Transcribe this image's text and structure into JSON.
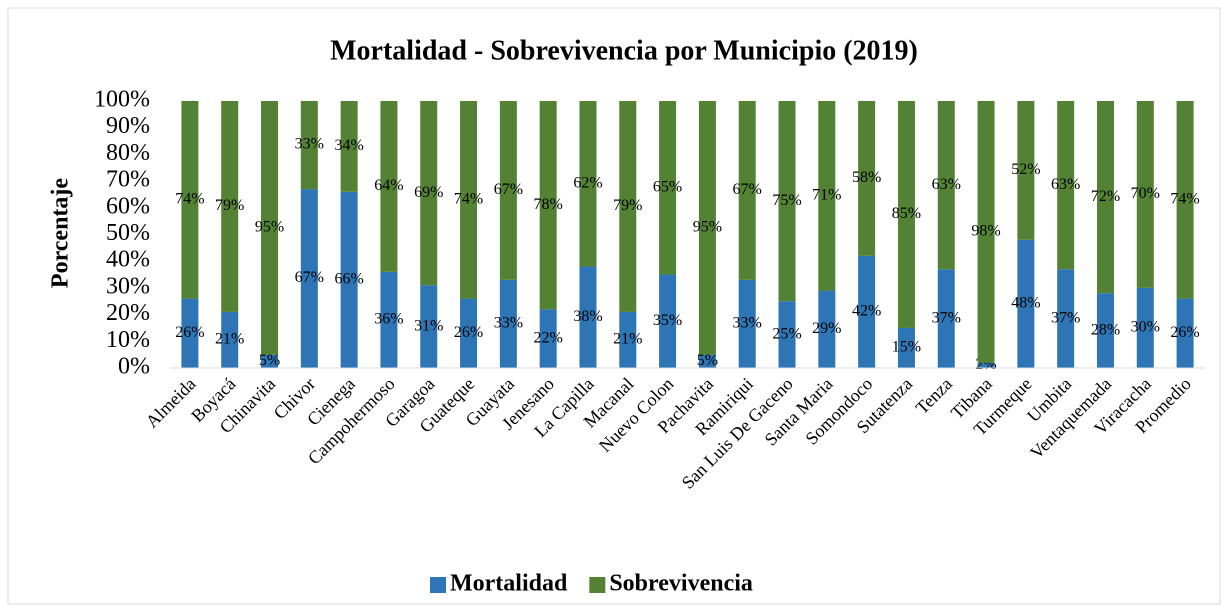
{
  "chart_data": {
    "type": "stacked_bar",
    "title": "Mortalidad - Sobrevivencia por Municipio (2019)",
    "y_label": "Porcentaje",
    "categories": [
      "Almeida",
      "Boyacá",
      "Chinavita",
      "Chivor",
      "Cienega",
      "Campohermoso",
      "Garagoa",
      "Guateque",
      "Guayata",
      "Jenesano",
      "La Capilla",
      "Macanal",
      "Nuevo Colon",
      "Pachavita",
      "Ramiriqui",
      "San Luis De Gaceno",
      "Santa Maria",
      "Somondoco",
      "Sutatenza",
      "Tenza",
      "Tibana",
      "Turmeque",
      "Umbita",
      "Ventaquemada",
      "Viracacha",
      "Promedio"
    ],
    "series": [
      {
        "name": "Mortalidad",
        "color": "#2e75b6",
        "values": [
          26,
          21,
          5,
          67,
          66,
          36,
          31,
          26,
          33,
          22,
          38,
          21,
          35,
          5,
          33,
          25,
          29,
          42,
          15,
          37,
          2,
          48,
          37,
          28,
          30,
          26
        ],
        "value_labels": [
          "26%",
          "21%",
          "5%",
          "67%",
          "66%",
          "36%",
          "31%",
          "26%",
          "33%",
          "22%",
          "38%",
          "21%",
          "35%",
          "5%",
          "33%",
          "25%",
          "29%",
          "42%",
          "15%",
          "37%",
          "2%",
          "48%",
          "37%",
          "28%",
          "30%",
          "26%"
        ]
      },
      {
        "name": "Sobrevivencia",
        "color": "#548235",
        "values": [
          74,
          79,
          95,
          33,
          34,
          64,
          69,
          74,
          67,
          78,
          62,
          79,
          65,
          95,
          67,
          75,
          71,
          58,
          85,
          63,
          98,
          52,
          63,
          72,
          70,
          74
        ],
        "value_labels": [
          "74%",
          "79%",
          "95%",
          "33%",
          "34%",
          "64%",
          "69%",
          "74%",
          "67%",
          "78%",
          "62%",
          "79%",
          "65%",
          "95%",
          "67%",
          "75%",
          "71%",
          "58%",
          "85%",
          "63%",
          "98%",
          "52%",
          "63%",
          "72%",
          "70%",
          "74%"
        ]
      }
    ],
    "ylim": [
      0,
      100
    ],
    "yticks": [
      {
        "value": 0,
        "label": "0%"
      },
      {
        "value": 10,
        "label": "10%"
      },
      {
        "value": 20,
        "label": "20%"
      },
      {
        "value": 30,
        "label": "30%"
      },
      {
        "value": 40,
        "label": "40%"
      },
      {
        "value": 50,
        "label": "50%"
      },
      {
        "value": 60,
        "label": "60%"
      },
      {
        "value": 70,
        "label": "70%"
      },
      {
        "value": 80,
        "label": "80%"
      },
      {
        "value": 90,
        "label": "90%"
      },
      {
        "value": 100,
        "label": "100%"
      }
    ],
    "legend": "bottom"
  }
}
